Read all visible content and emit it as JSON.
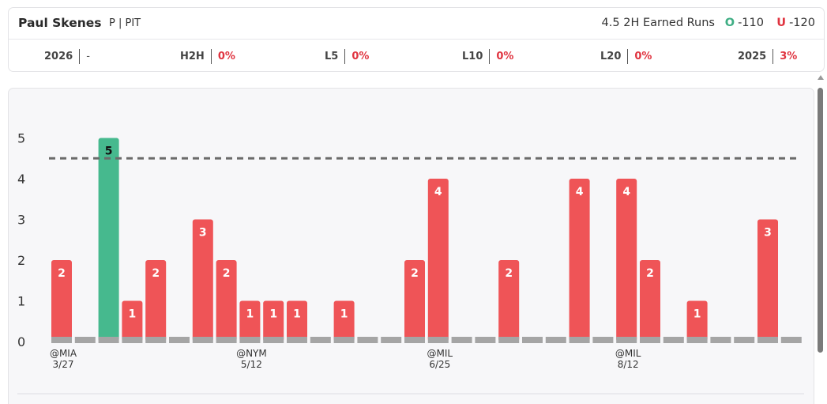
{
  "header": {
    "player_name": "Paul Skenes",
    "position_team": "P | PIT",
    "prop_line": "4.5 2H Earned Runs",
    "over": {
      "letter": "O",
      "odds": "-110"
    },
    "under": {
      "letter": "U",
      "odds": "-120"
    }
  },
  "stats": [
    {
      "label": "2026",
      "value": "-"
    },
    {
      "label": "H2H",
      "value": "0%"
    },
    {
      "label": "L5",
      "value": "0%"
    },
    {
      "label": "L10",
      "value": "0%"
    },
    {
      "label": "L20",
      "value": "0%"
    },
    {
      "label": "2025",
      "value": "3%"
    }
  ],
  "colors": {
    "over": "#46b98e",
    "under": "#ef5457",
    "zero": "#a5a5a5",
    "line": "#6b6b6b"
  },
  "chart_data": {
    "type": "bar",
    "title": "",
    "xlabel": "",
    "ylabel": "",
    "ylim": [
      0,
      5
    ],
    "yticks": [
      0,
      1,
      2,
      3,
      4,
      5
    ],
    "threshold": 4.5,
    "values": [
      2,
      0,
      5,
      1,
      2,
      0,
      3,
      2,
      1,
      1,
      1,
      0,
      1,
      0,
      0,
      2,
      4,
      0,
      0,
      2,
      0,
      0,
      4,
      0,
      4,
      2,
      0,
      1,
      0,
      0,
      3,
      0
    ],
    "x_labels": [
      {
        "index": 0,
        "opponent": "@MIA",
        "date": "3/27"
      },
      {
        "index": 8,
        "opponent": "@NYM",
        "date": "5/12"
      },
      {
        "index": 16,
        "opponent": "@MIL",
        "date": "6/25"
      },
      {
        "index": 24,
        "opponent": "@MIL",
        "date": "8/12"
      }
    ]
  }
}
